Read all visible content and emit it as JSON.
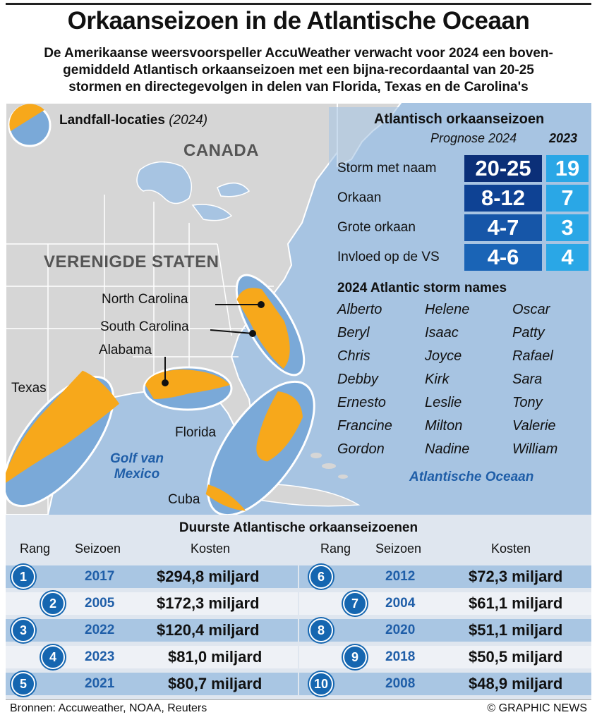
{
  "header": {
    "title": "Orkaanseizoen in de Atlantische Oceaan",
    "subtitle": "De Amerikaanse weersvoorspeller AccuWeather verwacht voor 2024 een bovengemiddeld Atlantisch orkaanseizoen met een bijna-recordaantal van 20-25 stormen en directegevolgen in delen van Florida, Texas en de Carolina's",
    "subtitle_lines": [
      "De Amerikaanse weersvoorspeller AccuWeather verwacht voor 2024 een boven-",
      "gemiddeld Atlantisch orkaanseizoen met een bijna-recordaantal van 20-25",
      "stormen en directegevolgen in delen van Florida, Texas en de Carolina's"
    ]
  },
  "map": {
    "legend_label": "Landfall-locaties",
    "legend_year": "(2024)",
    "countries": {
      "canada": "CANADA",
      "usa": "VERENIGDE STATEN"
    },
    "places": {
      "north_carolina": "North Carolina",
      "south_carolina": "South Carolina",
      "alabama": "Alabama",
      "texas": "Texas",
      "florida": "Florida",
      "cuba": "Cuba"
    },
    "seas": {
      "gulf_line1": "Golf van",
      "gulf_line2": "Mexico",
      "atlantic": "Atlantische Oceaan"
    },
    "colors": {
      "land": "#d6d6d6",
      "water": "#a7c4e2",
      "landfall": "#f7a81b",
      "zone": "#7aa9d8"
    }
  },
  "stats": {
    "title": "Atlantisch orkaanseizoen",
    "forecast_header": "Prognose 2024",
    "prev_header": "2023",
    "rows": [
      {
        "label": "Storm met naam",
        "forecast": "20-25",
        "prev": "19",
        "color": "#0b2f78"
      },
      {
        "label": "Orkaan",
        "forecast": "8-12",
        "prev": "7",
        "color": "#0e4294"
      },
      {
        "label": "Grote orkaan",
        "forecast": "4-7",
        "prev": "3",
        "color": "#1656a8"
      },
      {
        "label": "Invloed op de VS",
        "forecast": "4-6",
        "prev": "4",
        "color": "#1a64b6"
      }
    ]
  },
  "names": {
    "title": "2024 Atlantic storm names",
    "columns": [
      [
        "Alberto",
        "Beryl",
        "Chris",
        "Debby",
        "Ernesto",
        "Francine",
        "Gordon"
      ],
      [
        "Helene",
        "Isaac",
        "Joyce",
        "Kirk",
        "Leslie",
        "Milton",
        "Nadine"
      ],
      [
        "Oscar",
        "Patty",
        "Rafael",
        "Sara",
        "Tony",
        "Valerie",
        "William"
      ]
    ]
  },
  "ranking": {
    "title": "Duurste Atlantische orkaanseizoenen",
    "headers": {
      "rank": "Rang",
      "season": "Seizoen",
      "cost": "Kosten"
    },
    "left": [
      {
        "rank": "1",
        "season": "2017",
        "cost": "$294,8 miljard"
      },
      {
        "rank": "2",
        "season": "2005",
        "cost": "$172,3 miljard"
      },
      {
        "rank": "3",
        "season": "2022",
        "cost": "$120,4 miljard"
      },
      {
        "rank": "4",
        "season": "2023",
        "cost": "$81,0 miljard"
      },
      {
        "rank": "5",
        "season": "2021",
        "cost": "$80,7 miljard"
      }
    ],
    "right": [
      {
        "rank": "6",
        "season": "2012",
        "cost": "$72,3 miljard"
      },
      {
        "rank": "7",
        "season": "2004",
        "cost": "$61,1 miljard"
      },
      {
        "rank": "8",
        "season": "2020",
        "cost": "$51,1 miljard"
      },
      {
        "rank": "9",
        "season": "2018",
        "cost": "$50,5 miljard"
      },
      {
        "rank": "10",
        "season": "2008",
        "cost": "$48,9 miljard"
      }
    ]
  },
  "footer": {
    "sources": "Bronnen: Accuweather, NOAA, Reuters",
    "credit": "© GRAPHIC NEWS"
  }
}
